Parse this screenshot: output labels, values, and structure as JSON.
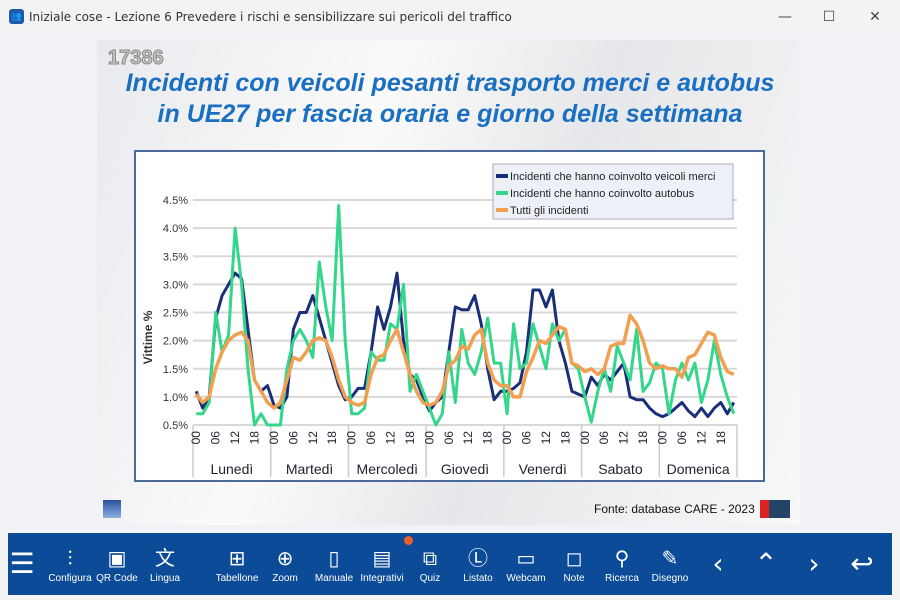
{
  "window": {
    "title": "Iniziale cose - Lezione 6 Prevedere i rischi e sensibilizzare sui pericoli del traffico",
    "minimize": "—",
    "maximize": "☐",
    "close": "✕"
  },
  "slide": {
    "number": "17386",
    "title_line1": "Incidenti con veicoli pesanti trasporto merci e autobus",
    "title_line2": "in UE27 per fascia oraria e giorno della settimana",
    "source": "Fonte: database CARE - 2023"
  },
  "chart_data": {
    "type": "line",
    "ylabel": "Vittime %",
    "ylim": [
      0.5,
      4.5
    ],
    "yticks": [
      "0.5%",
      "1.0%",
      "1.5%",
      "2.0%",
      "2.5%",
      "3.0%",
      "3.5%",
      "4.0%",
      "4.5%"
    ],
    "days": [
      "Lunedì",
      "Martedì",
      "Mercoledì",
      "Giovedì",
      "Venerdì",
      "Sabato",
      "Domenica"
    ],
    "hour_ticks": [
      "00",
      "06",
      "12",
      "18"
    ],
    "points_per_day": 12,
    "legend_position": "top-right",
    "grid": true,
    "series": [
      {
        "name": "Incidenti che hanno coinvolto veicoli merci",
        "color": "#1a2f7a",
        "values": [
          1.1,
          0.8,
          1.0,
          2.4,
          2.8,
          3.0,
          3.2,
          3.1,
          2.2,
          1.3,
          1.1,
          1.2,
          0.85,
          0.8,
          1.0,
          2.2,
          2.5,
          2.5,
          2.8,
          2.4,
          2.0,
          1.6,
          1.2,
          0.95,
          1.0,
          1.15,
          1.15,
          1.8,
          2.6,
          2.2,
          2.6,
          3.2,
          2.0,
          1.4,
          1.3,
          1.0,
          0.75,
          0.9,
          1.0,
          1.8,
          2.6,
          2.55,
          2.55,
          2.8,
          2.3,
          1.5,
          0.95,
          1.1,
          1.1,
          1.15,
          1.25,
          1.8,
          2.9,
          2.9,
          2.6,
          2.9,
          2.0,
          1.6,
          1.1,
          1.05,
          1.0,
          1.35,
          1.2,
          1.4,
          1.3,
          1.45,
          1.6,
          1.0,
          0.95,
          0.95,
          0.8,
          0.7,
          0.65,
          0.7,
          0.8,
          0.9,
          0.75,
          0.65,
          0.8,
          0.65,
          0.8,
          0.9,
          0.7,
          0.9
        ]
      },
      {
        "name": "Incidenti che hanno coinvolto autobus",
        "color": "#33d68a",
        "values": [
          0.7,
          0.7,
          0.9,
          2.5,
          1.8,
          2.1,
          4.0,
          3.0,
          1.5,
          0.5,
          0.7,
          0.5,
          0.5,
          0.5,
          1.5,
          2.0,
          2.2,
          2.0,
          1.7,
          3.4,
          2.6,
          2.0,
          4.4,
          2.0,
          0.7,
          0.7,
          0.8,
          1.8,
          1.65,
          1.65,
          2.3,
          2.2,
          3.0,
          1.1,
          1.4,
          1.1,
          0.8,
          0.5,
          0.7,
          1.8,
          0.9,
          2.2,
          1.6,
          1.4,
          1.8,
          2.4,
          1.6,
          1.6,
          0.7,
          2.3,
          1.5,
          1.6,
          2.3,
          1.9,
          1.5,
          2.3,
          2.0,
          2.2,
          1.6,
          1.5,
          1.0,
          0.55,
          1.1,
          1.5,
          1.1,
          1.9,
          1.6,
          1.3,
          2.2,
          1.1,
          1.25,
          1.6,
          1.5,
          0.7,
          1.3,
          1.6,
          1.3,
          1.6,
          0.9,
          1.3,
          2.0,
          1.4,
          1.0,
          0.7
        ]
      },
      {
        "name": "Tutti gli incidenti",
        "color": "#f0a050",
        "values": [
          1.05,
          0.9,
          1.0,
          1.5,
          1.8,
          2.0,
          2.1,
          2.15,
          2.0,
          1.3,
          1.1,
          0.9,
          0.8,
          0.9,
          1.3,
          1.7,
          1.65,
          1.8,
          2.0,
          2.05,
          2.0,
          1.7,
          1.3,
          1.0,
          0.9,
          0.85,
          0.9,
          1.4,
          1.7,
          1.75,
          2.0,
          2.2,
          1.8,
          1.4,
          1.1,
          0.9,
          0.85,
          0.9,
          1.1,
          1.55,
          1.65,
          1.9,
          1.85,
          2.1,
          2.2,
          1.6,
          1.3,
          1.2,
          1.2,
          1.0,
          1.0,
          1.45,
          1.7,
          2.0,
          1.95,
          2.1,
          2.25,
          2.2,
          1.6,
          1.55,
          1.45,
          1.5,
          1.4,
          1.5,
          1.9,
          1.95,
          1.95,
          2.45,
          2.3,
          2.0,
          1.6,
          1.5,
          1.55,
          1.5,
          1.5,
          1.35,
          1.7,
          1.75,
          1.95,
          2.15,
          2.1,
          1.7,
          1.45,
          1.4
        ]
      }
    ]
  },
  "toolbar": {
    "items": [
      {
        "id": "menu",
        "icon": "☰",
        "label": ""
      },
      {
        "id": "configura",
        "icon": "⫶",
        "label": "Configura"
      },
      {
        "id": "qrcode",
        "icon": "▣",
        "label": "QR Code"
      },
      {
        "id": "lingua",
        "icon": "文",
        "label": "Lingua"
      },
      {
        "id": "tabellone",
        "icon": "⊞",
        "label": "Tabellone"
      },
      {
        "id": "zoom",
        "icon": "⊕",
        "label": "Zoom"
      },
      {
        "id": "manuale",
        "icon": "▯",
        "label": "Manuale"
      },
      {
        "id": "integrativi",
        "icon": "▤",
        "label": "Integrativi"
      },
      {
        "id": "quiz",
        "icon": "⧉",
        "label": "Quiz"
      },
      {
        "id": "listato",
        "icon": "Ⓛ",
        "label": "Listato"
      },
      {
        "id": "webcam",
        "icon": "▭",
        "label": "Webcam"
      },
      {
        "id": "note",
        "icon": "◻",
        "label": "Note"
      },
      {
        "id": "ricerca",
        "icon": "⚲",
        "label": "Ricerca"
      },
      {
        "id": "disegno",
        "icon": "✎",
        "label": "Disegno"
      },
      {
        "id": "prev",
        "icon": "‹",
        "label": ""
      },
      {
        "id": "updown",
        "icon": "⌃",
        "label": ""
      },
      {
        "id": "next",
        "icon": "›",
        "label": ""
      },
      {
        "id": "back",
        "icon": "↩",
        "label": ""
      }
    ]
  }
}
